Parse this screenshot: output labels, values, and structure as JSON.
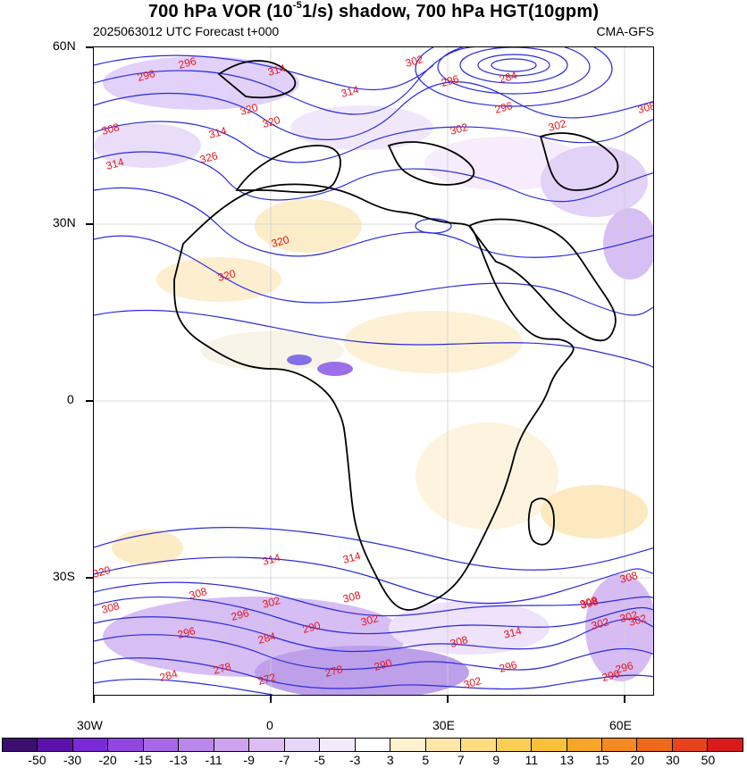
{
  "title": {
    "pre": "700 hPa  VOR (10",
    "sup": "-5",
    "post": "1/s) shadow, 700 hPa HGT(10gpm)"
  },
  "subtitle_left": "2025063012 UTC Forecast t+000",
  "subtitle_right": "CMA-GFS",
  "lat_labels": [
    "60N",
    "30N",
    "0",
    "30S"
  ],
  "lon_labels": [
    "30W",
    "0",
    "30E",
    "60E"
  ],
  "contour_labels": [
    "296",
    "296",
    "314",
    "314",
    "302",
    "296",
    "284",
    "308",
    "314",
    "320",
    "296",
    "302",
    "302",
    "308",
    "314",
    "326",
    "320",
    "320",
    "320",
    "314",
    "314",
    "320",
    "308",
    "302",
    "308",
    "308",
    "296",
    "296",
    "284",
    "290",
    "302",
    "308",
    "314",
    "308",
    "302",
    "296",
    "284",
    "278",
    "272",
    "278",
    "290",
    "302",
    "296",
    "308",
    "302",
    "308",
    "302",
    "296"
  ],
  "colorbar": {
    "labels": [
      "-50",
      "-30",
      "-20",
      "-15",
      "-13",
      "-11",
      "-9",
      "-7",
      "-5",
      "-3",
      "3",
      "5",
      "7",
      "9",
      "11",
      "13",
      "15",
      "20",
      "30",
      "50"
    ],
    "colors": [
      "#3b0f70",
      "#5c12a8",
      "#7a2ad6",
      "#9247e0",
      "#a867e6",
      "#bb86ec",
      "#cda3f1",
      "#dcbef5",
      "#e8d6f8",
      "#f3ebfb",
      "#ffffff",
      "#fdf1cf",
      "#fde7a8",
      "#fcdc7f",
      "#fbcf55",
      "#f9c03a",
      "#f7a62a",
      "#f48a21",
      "#ee6a1a",
      "#e8431a",
      "#d91a1a"
    ]
  }
}
